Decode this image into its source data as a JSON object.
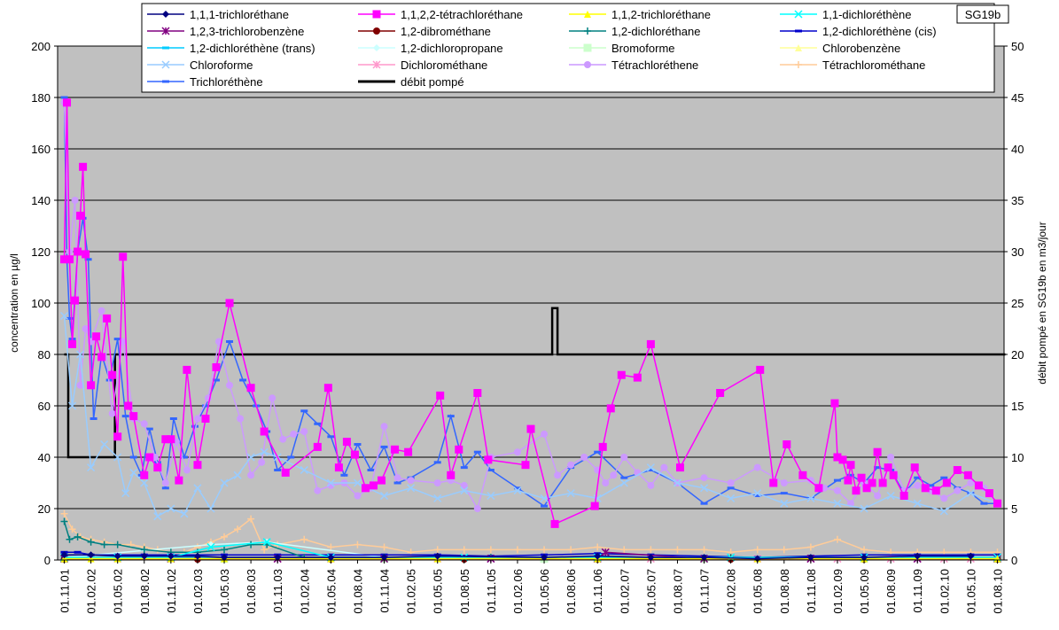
{
  "chart_data": {
    "type": "line",
    "badge": "SG19b",
    "ylabel": "concentration en µg/l",
    "y2label": "débit pompé en SG19b en m3/jour",
    "ylim": [
      0,
      200
    ],
    "y2lim": [
      0,
      50
    ],
    "yticks": [
      "0",
      "20",
      "40",
      "60",
      "80",
      "100",
      "120",
      "140",
      "160",
      "180",
      "200"
    ],
    "y2ticks": [
      "0",
      "5",
      "10",
      "15",
      "20",
      "25",
      "30",
      "35",
      "40",
      "45",
      "50"
    ],
    "xticks": [
      "01.11.01",
      "01.02.02",
      "01.05.02",
      "01.08.02",
      "01.11.02",
      "01.02.03",
      "01.05.03",
      "01.08.03",
      "01.11.03",
      "01.02.04",
      "01.05.04",
      "01.08.04",
      "01.11.04",
      "01.02.05",
      "01.05.05",
      "01.08.05",
      "01.11.05",
      "01.02.06",
      "01.05.06",
      "01.08.06",
      "01.11.06",
      "01.02.07",
      "01.05.07",
      "01.08.07",
      "01.11.07",
      "01.02.08",
      "01.05.08",
      "01.08.08",
      "01.11.08",
      "01.02.09",
      "01.05.09",
      "01.08.09",
      "01.11.09",
      "01.02.10",
      "01.05.10",
      "01.08.10"
    ],
    "grid": true,
    "legend_position": "top",
    "plot_background": "#c0c0c0",
    "series": [
      {
        "name": "1,1,1-trichloréthane",
        "color": "#000080",
        "marker": "diamond",
        "axis": "left",
        "x": [
          0,
          1,
          2,
          3,
          4,
          5,
          6,
          8,
          10,
          12,
          14,
          18,
          20,
          22,
          24,
          26,
          28,
          30,
          32,
          34
        ],
        "values": [
          2,
          2,
          1.5,
          1.5,
          1.5,
          1.5,
          1,
          1,
          1,
          1,
          1.5,
          1,
          1.5,
          1,
          1,
          0.5,
          1,
          1,
          1.5,
          1.5
        ]
      },
      {
        "name": "1,1,2,2-tétrachloréthane",
        "color": "#ff00ff",
        "marker": "square",
        "axis": "left",
        "x": [
          0,
          0.1,
          0.2,
          0.3,
          0.4,
          0.5,
          0.6,
          0.7,
          0.8,
          1.0,
          1.2,
          1.4,
          1.6,
          1.8,
          2.0,
          2.2,
          2.4,
          2.6,
          3.0,
          3.2,
          3.5,
          3.8,
          4.0,
          4.3,
          4.6,
          5.0,
          5.3,
          5.7,
          6.2,
          7.0,
          7.5,
          8.3,
          9.5,
          9.9,
          10.3,
          10.6,
          10.9,
          11.3,
          11.6,
          11.9,
          12.4,
          12.9,
          14.1,
          14.5,
          14.8,
          15.5,
          15.9,
          17.3,
          17.5,
          18.4,
          19.9,
          20.2,
          20.5,
          20.9,
          21.5,
          22.0,
          23.1,
          24.6,
          26.1,
          26.6,
          27.1,
          27.7,
          28.3,
          28.9,
          29.0,
          29.2,
          29.4,
          29.5,
          29.7,
          29.9,
          30.1,
          30.3,
          30.5,
          30.7,
          30.9,
          31.1,
          31.5,
          31.9,
          32.3,
          32.7,
          33.1,
          33.5,
          33.9,
          34.3,
          34.7,
          35.0
        ],
        "values": [
          117,
          178,
          117,
          84,
          101,
          120,
          134,
          153,
          119,
          68,
          87,
          79,
          94,
          72,
          48,
          118,
          60,
          56,
          33,
          40,
          36,
          47,
          47,
          31,
          74,
          37,
          55,
          75,
          100,
          67,
          50,
          34,
          44,
          67,
          36,
          46,
          41,
          28,
          29,
          31,
          43,
          42,
          64,
          33,
          43,
          65,
          39,
          37,
          51,
          14,
          21,
          44,
          59,
          72,
          71,
          84,
          36,
          65,
          74,
          30,
          45,
          33,
          28,
          61,
          40,
          39,
          31,
          37,
          27,
          32,
          28,
          30,
          42,
          30,
          36,
          33,
          25,
          36,
          28,
          27,
          30,
          35,
          33,
          29,
          26,
          22
        ]
      },
      {
        "name": "1,1,2-trichloréthane",
        "color": "#ffff00",
        "marker": "triangle",
        "axis": "left",
        "x": [
          0,
          1,
          2,
          4,
          6,
          10,
          14,
          20,
          26,
          30,
          35
        ],
        "values": [
          0.5,
          0.5,
          0.5,
          0.5,
          0.5,
          0.5,
          0.5,
          0.5,
          0.5,
          0.5,
          0.5
        ]
      },
      {
        "name": "1,1-dichloréthène",
        "color": "#00ffff",
        "marker": "x",
        "axis": "left",
        "x": [
          0,
          2,
          4,
          5.5,
          7.6,
          10,
          15,
          20,
          25,
          30,
          35
        ],
        "values": [
          1,
          1,
          1,
          5,
          7,
          1,
          1,
          1,
          1,
          1,
          1
        ]
      },
      {
        "name": "1,2,3-trichlorobenzène",
        "color": "#800080",
        "marker": "star",
        "axis": "left",
        "x": [
          0,
          4,
          8,
          12,
          16,
          20,
          20.3,
          24,
          28,
          32,
          35
        ],
        "values": [
          0.5,
          0.5,
          0.5,
          0.5,
          0.5,
          0.5,
          3,
          0.5,
          0.5,
          0.5,
          0.5
        ]
      },
      {
        "name": "1,2-dibrométhane",
        "color": "#800000",
        "marker": "circle",
        "axis": "left",
        "x": [
          0,
          5,
          10,
          15,
          20,
          25,
          30,
          35
        ],
        "values": [
          0.3,
          0.3,
          0.3,
          0.3,
          0.3,
          0.3,
          0.3,
          0.3
        ]
      },
      {
        "name": "1,2-dichloréthane",
        "color": "#008080",
        "marker": "plus",
        "axis": "left",
        "x": [
          0,
          0.2,
          0.5,
          1,
          1.5,
          2,
          3,
          4,
          5,
          6,
          7,
          7.6,
          9,
          12,
          16,
          20,
          25,
          30,
          35
        ],
        "values": [
          15,
          8,
          9,
          7,
          6,
          6,
          4,
          3,
          3,
          4,
          6,
          6,
          1,
          1,
          1,
          1,
          1,
          1,
          1
        ]
      },
      {
        "name": "1,2-dichloréthène (cis)",
        "color": "#0000cc",
        "marker": "dash",
        "axis": "left",
        "x": [
          0,
          0.5,
          1,
          2,
          3,
          4,
          6,
          8,
          10,
          12,
          14,
          16,
          18,
          20,
          22,
          24,
          26,
          28,
          30,
          32,
          34,
          35
        ],
        "values": [
          3,
          3,
          2,
          2,
          2,
          2,
          2,
          2,
          2,
          2,
          2,
          1.5,
          2,
          2.5,
          2,
          1.5,
          1,
          1.5,
          2,
          2,
          2,
          2
        ]
      },
      {
        "name": "1,2-dichloréthène (trans)",
        "color": "#00ccff",
        "marker": "dash",
        "axis": "left",
        "x": [
          0,
          4,
          8,
          12,
          16,
          20,
          24,
          28,
          32,
          35
        ],
        "values": [
          1,
          1,
          1,
          1,
          1,
          1,
          1,
          1,
          1,
          1
        ]
      },
      {
        "name": "1,2-dichloropropane",
        "color": "#ccffff",
        "marker": "diamond",
        "axis": "left",
        "x": [
          0,
          5.5,
          7.6,
          12,
          18,
          24,
          30,
          35
        ],
        "values": [
          1,
          6,
          7,
          1,
          1,
          1,
          1,
          1
        ]
      },
      {
        "name": "Bromoforme",
        "color": "#ccffcc",
        "marker": "square",
        "axis": "left",
        "x": [
          0,
          6,
          12,
          18,
          24,
          30,
          35
        ],
        "values": [
          0.5,
          0.5,
          0.5,
          0.5,
          0.5,
          0.5,
          0.5
        ]
      },
      {
        "name": "Chlorobenzène",
        "color": "#ffff99",
        "marker": "triangle",
        "axis": "left",
        "x": [
          0,
          6,
          12,
          18,
          24,
          30,
          35
        ],
        "values": [
          0.5,
          0.5,
          0.5,
          0.5,
          0.5,
          0.5,
          0.5
        ]
      },
      {
        "name": "Chloroforme",
        "color": "#99ccff",
        "marker": "x",
        "axis": "left",
        "x": [
          0,
          0.3,
          0.6,
          1.0,
          1.5,
          2.0,
          2.3,
          2.6,
          3.0,
          3.5,
          4.0,
          4.5,
          5.0,
          5.5,
          6.0,
          6.5,
          7.0,
          7.5,
          8.0,
          9.0,
          10.0,
          11.0,
          12.0,
          13.0,
          14.0,
          15.0,
          16.0,
          17.0,
          18.0,
          19.0,
          20.0,
          21.0,
          22.0,
          23.0,
          24.0,
          25.0,
          26.0,
          27.0,
          28.0,
          29.0,
          30.0,
          31.0,
          32.0,
          33.0,
          34.0,
          35.0
        ],
        "values": [
          95,
          60,
          80,
          36,
          45,
          40,
          26,
          34,
          30,
          17,
          20,
          18,
          28,
          20,
          30,
          33,
          40,
          42,
          40,
          35,
          30,
          30,
          25,
          28,
          24,
          27,
          25,
          27,
          24,
          26,
          24,
          30,
          36,
          30,
          28,
          24,
          26,
          22,
          24,
          22,
          20,
          25,
          22,
          19,
          26,
          22
        ]
      },
      {
        "name": "Dichlorométhane",
        "color": "#ff99cc",
        "marker": "star",
        "axis": "left",
        "x": [
          0,
          2,
          4,
          6,
          8,
          10,
          12,
          14,
          16,
          18,
          20,
          22,
          24,
          26,
          28,
          29,
          30,
          31,
          32,
          33,
          34,
          35
        ],
        "values": [
          1,
          0.5,
          0.5,
          0.5,
          0.5,
          0.5,
          0.5,
          0.5,
          0.5,
          0.5,
          0.5,
          0.5,
          0.5,
          0.5,
          0.5,
          0.5,
          0.5,
          0.5,
          0.5,
          0.5,
          0.5,
          0.5
        ]
      },
      {
        "name": "Tétrachloréthene",
        "color": "#cc99ff",
        "marker": "circle",
        "axis": "left",
        "x": [
          0,
          0.2,
          0.4,
          0.6,
          0.8,
          1.0,
          1.4,
          1.8,
          2.2,
          2.6,
          3.0,
          3.4,
          3.8,
          4.2,
          4.6,
          5.0,
          5.4,
          5.8,
          6.2,
          6.6,
          7.0,
          7.4,
          7.8,
          8.2,
          8.6,
          9.0,
          9.5,
          10.0,
          10.5,
          11.0,
          11.5,
          12.0,
          12.5,
          13.0,
          14.0,
          14.5,
          15.0,
          15.5,
          16.0,
          17.0,
          18.0,
          18.5,
          19.0,
          19.5,
          20.0,
          20.3,
          20.6,
          21.0,
          21.5,
          22.0,
          22.5,
          23.0,
          24.0,
          25.0,
          26.0,
          27.0,
          28.0,
          28.5,
          29.0,
          29.5,
          30.0,
          30.5,
          31.0,
          31.5,
          32.0,
          32.5,
          33.0,
          33.5,
          34.0,
          34.5,
          35.0
        ],
        "values": [
          178,
          120,
          140,
          68,
          90,
          85,
          97,
          57,
          85,
          55,
          53,
          40,
          30,
          46,
          35,
          55,
          63,
          85,
          68,
          55,
          33,
          38,
          63,
          47,
          49,
          50,
          27,
          29,
          30,
          25,
          28,
          52,
          32,
          31,
          30,
          31,
          29,
          20,
          40,
          42,
          49,
          33,
          37,
          40,
          35,
          30,
          33,
          40,
          34,
          29,
          36,
          30,
          32,
          30,
          36,
          30,
          31,
          28,
          27,
          22,
          30,
          25,
          40,
          27,
          29,
          27,
          24,
          27,
          30,
          28,
          22
        ]
      },
      {
        "name": "Tétrachlorométhane",
        "color": "#ffcc99",
        "marker": "plus",
        "axis": "left",
        "x": [
          0,
          0.3,
          0.6,
          1.0,
          1.5,
          2.0,
          2.5,
          3.0,
          3.5,
          4.0,
          4.5,
          5.0,
          5.5,
          6.0,
          6.5,
          7.0,
          7.5,
          8.0,
          9.0,
          10.0,
          11.0,
          12.0,
          13.0,
          14.0,
          15.0,
          16.0,
          17.0,
          18.0,
          19.0,
          20.0,
          21.0,
          22.0,
          23.0,
          24.0,
          25.0,
          26.0,
          27.0,
          28.0,
          29.0,
          30.0,
          31.0,
          32.0,
          33.0,
          34.0,
          35.0
        ],
        "values": [
          18,
          12,
          9,
          8,
          7,
          6,
          6,
          5,
          4,
          3,
          3,
          5,
          7,
          9,
          12,
          16,
          4,
          6,
          8,
          5,
          6,
          5,
          3,
          4,
          4,
          4,
          4,
          4,
          4,
          5,
          4,
          4,
          4,
          4,
          3,
          4,
          4,
          5,
          8,
          4,
          3,
          3,
          3,
          3,
          3
        ]
      },
      {
        "name": "Trichloréthène",
        "color": "#3366ff",
        "marker": "dash",
        "axis": "left",
        "x": [
          0,
          0.1,
          0.2,
          0.3,
          0.5,
          0.7,
          0.9,
          1.1,
          1.4,
          1.7,
          2.0,
          2.3,
          2.6,
          2.9,
          3.2,
          3.5,
          3.8,
          4.1,
          4.5,
          4.9,
          5.3,
          5.7,
          6.2,
          6.7,
          7.2,
          7.6,
          8.0,
          8.5,
          9.0,
          9.5,
          10.0,
          10.5,
          11.0,
          11.5,
          12.0,
          12.5,
          13.0,
          14.0,
          14.5,
          15.0,
          15.5,
          16.0,
          17.0,
          18.0,
          19.0,
          20.0,
          21.0,
          22.0,
          23.0,
          24.0,
          25.0,
          26.0,
          27.0,
          28.0,
          29.0,
          29.5,
          30.0,
          30.5,
          31.0,
          31.5,
          32.0,
          32.5,
          33.0,
          33.5,
          34.0,
          34.5,
          35.0
        ],
        "values": [
          180,
          117,
          94,
          86,
          120,
          133,
          117,
          55,
          80,
          70,
          86,
          56,
          40,
          33,
          51,
          38,
          28,
          55,
          40,
          52,
          60,
          70,
          85,
          70,
          60,
          50,
          35,
          40,
          58,
          53,
          48,
          33,
          45,
          35,
          44,
          30,
          32,
          38,
          56,
          36,
          42,
          35,
          28,
          21,
          36,
          42,
          32,
          35,
          30,
          22,
          28,
          25,
          26,
          24,
          31,
          33,
          30,
          36,
          35,
          26,
          32,
          29,
          32,
          28,
          26,
          22,
          22
        ]
      },
      {
        "name": "débit pompé",
        "color": "#000000",
        "marker": "none",
        "axis": "right",
        "x": [
          0,
          0.15,
          0.15,
          1.9,
          1.9,
          18.3,
          18.3,
          18.5,
          18.5,
          35.3
        ],
        "values": [
          20,
          20,
          10,
          10,
          20,
          20,
          24.5,
          24.5,
          20,
          20
        ]
      }
    ]
  }
}
